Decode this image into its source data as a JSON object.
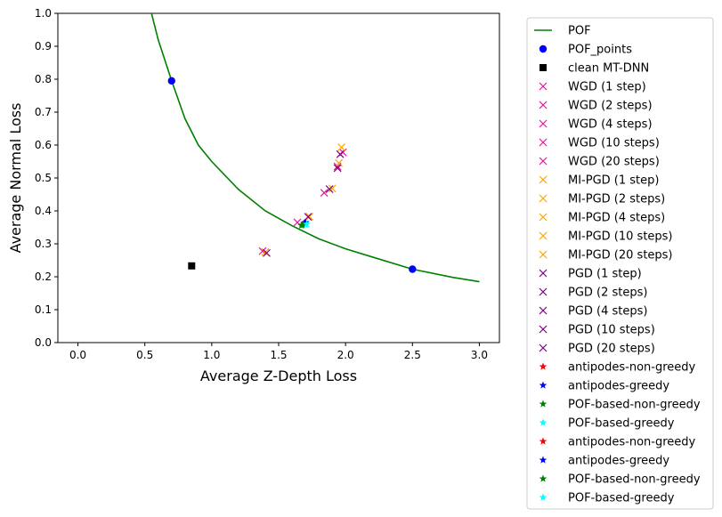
{
  "chart_data": {
    "type": "scatter",
    "xlabel": "Average Z-Depth Loss",
    "ylabel": "Average Normal Loss",
    "xlim": [
      -0.15,
      3.15
    ],
    "ylim": [
      0.0,
      1.0
    ],
    "xticks": [
      "0.0",
      "0.5",
      "1.0",
      "1.5",
      "2.0",
      "2.5",
      "3.0"
    ],
    "yticks": [
      "0.0",
      "0.1",
      "0.2",
      "0.3",
      "0.4",
      "0.5",
      "0.6",
      "0.7",
      "0.8",
      "0.9",
      "1.0"
    ],
    "grid": false,
    "legend_position": "outside-right",
    "curve": {
      "name": "POF",
      "color": "#008000",
      "x": [
        0.55,
        0.6,
        0.7,
        0.8,
        0.9,
        1.0,
        1.2,
        1.4,
        1.6,
        1.8,
        2.0,
        2.2,
        2.5,
        2.8,
        3.0
      ],
      "y": [
        1.0,
        0.92,
        0.795,
        0.68,
        0.6,
        0.55,
        0.465,
        0.4,
        0.355,
        0.315,
        0.285,
        0.26,
        0.223,
        0.198,
        0.185
      ]
    },
    "series": [
      {
        "name": "POF_points",
        "marker": "circle",
        "color": "#0000ff",
        "x": [
          0.7,
          2.5
        ],
        "y": [
          0.795,
          0.223
        ]
      },
      {
        "name": "clean MT-DNN",
        "marker": "square",
        "color": "#000000",
        "x": [
          0.85
        ],
        "y": [
          0.233
        ]
      },
      {
        "name": "WGD (1 step)",
        "marker": "x",
        "color": "#e6179b",
        "x": [
          1.38
        ],
        "y": [
          0.278
        ]
      },
      {
        "name": "WGD (2 steps)",
        "marker": "x",
        "color": "#e6179b",
        "x": [
          1.64
        ],
        "y": [
          0.365
        ]
      },
      {
        "name": "WGD (4 steps)",
        "marker": "x",
        "color": "#e6179b",
        "x": [
          1.84
        ],
        "y": [
          0.455
        ]
      },
      {
        "name": "WGD (10 steps)",
        "marker": "x",
        "color": "#e6179b",
        "x": [
          1.94
        ],
        "y": [
          0.535
        ]
      },
      {
        "name": "WGD (20 steps)",
        "marker": "x",
        "color": "#e6179b",
        "x": [
          1.98
        ],
        "y": [
          0.578
        ]
      },
      {
        "name": "MI-PGD (1 step)",
        "marker": "x",
        "color": "#ffa500",
        "x": [
          1.4
        ],
        "y": [
          0.275
        ]
      },
      {
        "name": "MI-PGD (2 steps)",
        "marker": "x",
        "color": "#ffa500",
        "x": [
          1.73
        ],
        "y": [
          0.383
        ]
      },
      {
        "name": "MI-PGD (4 steps)",
        "marker": "x",
        "color": "#ffa500",
        "x": [
          1.9
        ],
        "y": [
          0.468
        ]
      },
      {
        "name": "MI-PGD (10 steps)",
        "marker": "x",
        "color": "#ffa500",
        "x": [
          1.95
        ],
        "y": [
          0.545
        ]
      },
      {
        "name": "MI-PGD (20 steps)",
        "marker": "x",
        "color": "#ffa500",
        "x": [
          1.97
        ],
        "y": [
          0.593
        ]
      },
      {
        "name": "PGD (1 step)",
        "marker": "x",
        "color": "#800080",
        "x": [
          1.41
        ],
        "y": [
          0.272
        ]
      },
      {
        "name": "PGD (2 steps)",
        "marker": "x",
        "color": "#800080",
        "x": [
          1.72
        ],
        "y": [
          0.382
        ]
      },
      {
        "name": "PGD (4 steps)",
        "marker": "x",
        "color": "#800080",
        "x": [
          1.88
        ],
        "y": [
          0.466
        ]
      },
      {
        "name": "PGD (10 steps)",
        "marker": "x",
        "color": "#800080",
        "x": [
          1.94
        ],
        "y": [
          0.53
        ]
      },
      {
        "name": "PGD (20 steps)",
        "marker": "x",
        "color": "#800080",
        "x": [
          1.96
        ],
        "y": [
          0.572
        ]
      },
      {
        "name": "antipodes-non-greedy",
        "marker": "star",
        "color": "#ff0000",
        "x": [
          1.69
        ],
        "y": [
          0.362
        ]
      },
      {
        "name": "antipodes-greedy",
        "marker": "star",
        "color": "#0000ff",
        "x": [
          1.69
        ],
        "y": [
          0.362
        ]
      },
      {
        "name": "POF-based-non-greedy",
        "marker": "star",
        "color": "#008000",
        "x": [
          1.67
        ],
        "y": [
          0.356
        ]
      },
      {
        "name": "POF-based-greedy",
        "marker": "star",
        "color": "#00ffff",
        "x": [
          1.7
        ],
        "y": [
          0.358
        ]
      },
      {
        "name": "antipodes-non-greedy",
        "marker": "star",
        "color": "#ff0000",
        "x": [
          1.7
        ],
        "y": [
          0.364
        ]
      },
      {
        "name": "antipodes-greedy",
        "marker": "star",
        "color": "#0000ff",
        "x": [
          1.7
        ],
        "y": [
          0.365
        ]
      },
      {
        "name": "POF-based-non-greedy",
        "marker": "star",
        "color": "#008000",
        "x": [
          1.68
        ],
        "y": [
          0.357
        ]
      },
      {
        "name": "POF-based-greedy",
        "marker": "star",
        "color": "#00ffff",
        "x": [
          1.71
        ],
        "y": [
          0.36
        ]
      }
    ]
  }
}
